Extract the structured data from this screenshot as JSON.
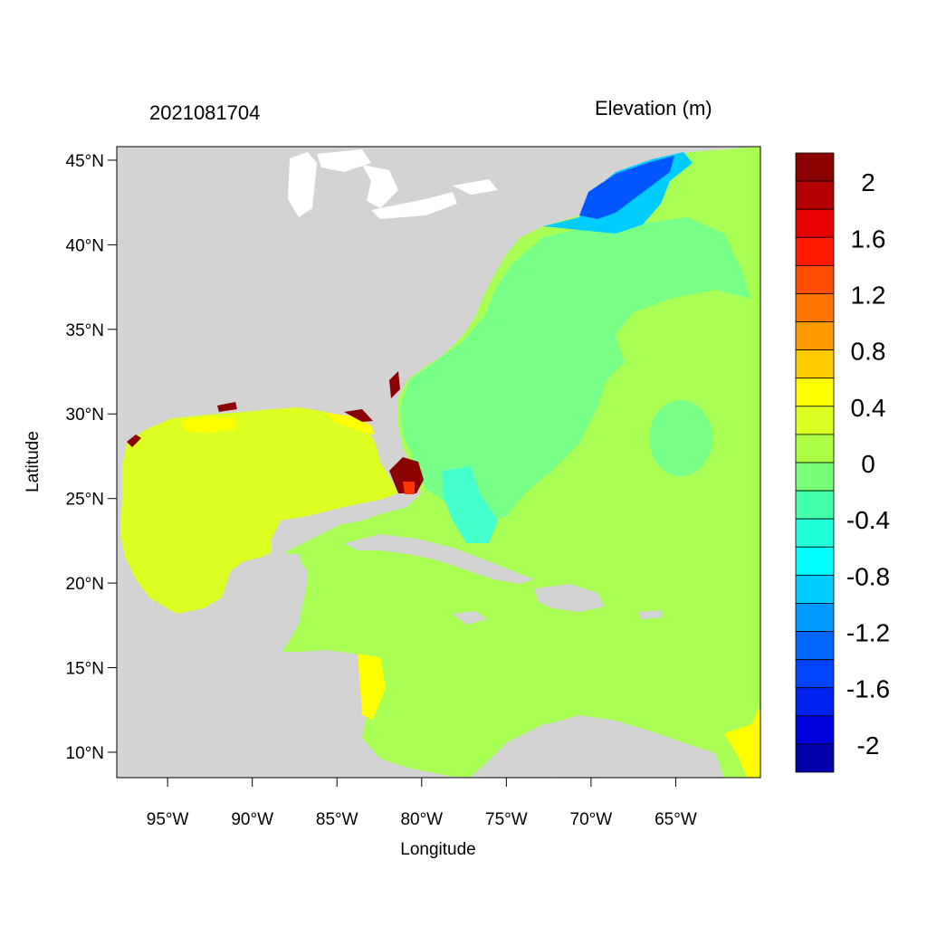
{
  "header": {
    "timestamp": "2021081704",
    "variable": "Elevation (m)"
  },
  "axes": {
    "xlabel": "Longitude",
    "ylabel": "Latitude",
    "lon_ticks": [
      {
        "value": -95,
        "label": "95°W"
      },
      {
        "value": -90,
        "label": "90°W"
      },
      {
        "value": -85,
        "label": "85°W"
      },
      {
        "value": -80,
        "label": "80°W"
      },
      {
        "value": -75,
        "label": "75°W"
      },
      {
        "value": -70,
        "label": "70°W"
      },
      {
        "value": -65,
        "label": "65°W"
      }
    ],
    "lat_ticks": [
      {
        "value": 45,
        "label": "45°N"
      },
      {
        "value": 40,
        "label": "40°N"
      },
      {
        "value": 35,
        "label": "35°N"
      },
      {
        "value": 30,
        "label": "30°N"
      },
      {
        "value": 25,
        "label": "25°N"
      },
      {
        "value": 20,
        "label": "20°N"
      },
      {
        "value": 15,
        "label": "15°N"
      },
      {
        "value": 10,
        "label": "10°N"
      }
    ],
    "lon_range": [
      -98,
      -60
    ],
    "lat_range": [
      8.5,
      45.8
    ]
  },
  "colorbar": {
    "colors": [
      "#8b0000",
      "#b30000",
      "#e60000",
      "#ff1a00",
      "#ff4d00",
      "#ff7300",
      "#ff9900",
      "#ffcc00",
      "#ffff00",
      "#ddff22",
      "#aaff44",
      "#77ff77",
      "#44ffaa",
      "#22ffdd",
      "#00ffff",
      "#00ccff",
      "#0099ff",
      "#0066ff",
      "#0044ff",
      "#0022ee",
      "#0000dd",
      "#0000aa"
    ],
    "labels": [
      {
        "index": 1,
        "text": "2"
      },
      {
        "index": 3,
        "text": "1.6"
      },
      {
        "index": 5,
        "text": "1.2"
      },
      {
        "index": 7,
        "text": "0.8"
      },
      {
        "index": 9,
        "text": "0.4"
      },
      {
        "index": 11,
        "text": "0"
      },
      {
        "index": 13,
        "text": "-0.4"
      },
      {
        "index": 15,
        "text": "-0.8"
      },
      {
        "index": 17,
        "text": "-1.2"
      },
      {
        "index": 19,
        "text": "-1.6"
      },
      {
        "index": 21,
        "text": "-2"
      }
    ]
  },
  "colors": {
    "land": "#d3d3d3",
    "lakes": "#ffffff",
    "atlantic": "#aaff55",
    "shelf": "#77ff88",
    "gulf": "#ddff22",
    "coast_gulf": "#ffff00",
    "surge_high": "#8b0000",
    "surge_mid": "#ff3300",
    "nw_atlantic_low": "#0055ff",
    "nw_atlantic_mid": "#00ccff",
    "bahamas": "#44ffcc"
  }
}
